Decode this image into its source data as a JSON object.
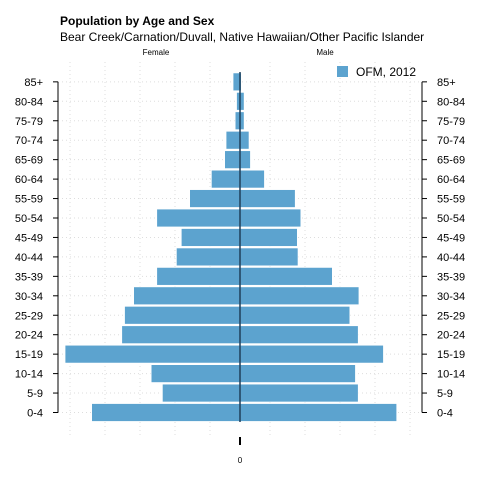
{
  "chart_data": {
    "type": "bar",
    "orientation": "horizontal-population-pyramid",
    "title": "Population by Age and Sex",
    "subtitle": "Bear Creek/Carnation/Duvall, Native Hawaiian/Other Pacific Islander",
    "left_label": "Female",
    "right_label": "Male",
    "categories": [
      "0-4",
      "5-9",
      "10-14",
      "15-19",
      "20-24",
      "25-29",
      "30-34",
      "35-39",
      "40-44",
      "45-49",
      "50-54",
      "55-59",
      "60-64",
      "65-69",
      "70-74",
      "75-79",
      "80-84",
      "85+"
    ],
    "series": [
      {
        "name": "OFM, 2012",
        "female": [
          2.12,
          1.11,
          1.27,
          2.5,
          1.69,
          1.65,
          1.52,
          1.19,
          0.91,
          0.84,
          1.19,
          0.72,
          0.41,
          0.22,
          0.2,
          0.07,
          0.05,
          0.1
        ],
        "male": [
          2.24,
          1.69,
          1.65,
          2.05,
          1.69,
          1.57,
          1.7,
          1.32,
          0.83,
          0.82,
          0.87,
          0.79,
          0.35,
          0.15,
          0.13,
          0.06,
          0.06,
          0.02
        ]
      }
    ],
    "xlim": [
      -2.5,
      2.5
    ],
    "x_tick_label": "0",
    "legend_position": "top-right",
    "grid": true,
    "bar_color": "#5ca3cf"
  }
}
